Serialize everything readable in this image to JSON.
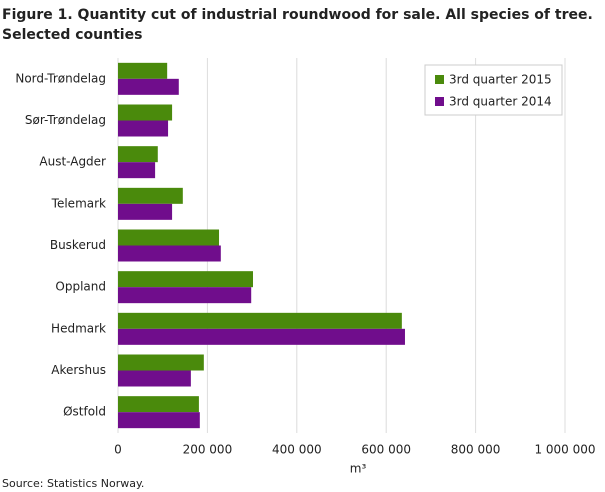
{
  "chart_data": {
    "type": "hbar",
    "title": "Figure 1. Quantity cut of industrial roundwood for sale. All species of tree.",
    "subtitle": "Selected counties",
    "x_label": "m³",
    "source": "Source: Statistics Norway.",
    "categories": [
      "Nord-Trøndelag",
      "Sør-Trøndelag",
      "Aust-Agder",
      "Telemark",
      "Buskerud",
      "Oppland",
      "Hedmark",
      "Akershus",
      "Østfold"
    ],
    "series": [
      {
        "name": "3rd quarter 2015",
        "color": "#4a8a0c",
        "values": [
          110000,
          121000,
          89000,
          145000,
          226000,
          302000,
          635000,
          192000,
          181000
        ]
      },
      {
        "name": "3rd quarter 2014",
        "color": "#700d8c",
        "values": [
          136000,
          112000,
          83000,
          121000,
          230000,
          298000,
          642000,
          163000,
          183000
        ]
      }
    ],
    "xlim": [
      0,
      1000000
    ],
    "xticks": [
      0,
      {
        "value": 200000,
        "label": "200 000"
      },
      {
        "value": 400000,
        "label": "400 000"
      },
      {
        "value": 600000,
        "label": "600 000"
      },
      {
        "value": 800000,
        "label": "800 000"
      },
      {
        "value": 1000000,
        "label": "1 000 000"
      }
    ],
    "grid": true,
    "legend": "top-right"
  }
}
